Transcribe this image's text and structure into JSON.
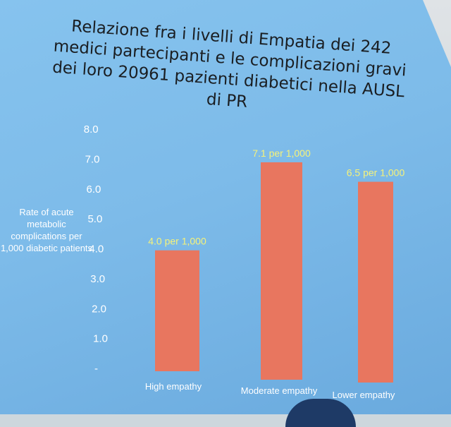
{
  "title": "Relazione fra i livelli di Empatia dei 242 medici partecipanti e le complicazioni gravi dei loro 20961 pazienti diabetici nella  AUSL di PR",
  "colors": {
    "background": "#7dbbe9",
    "bar": "#e8765f",
    "data_label": "#f5f27a",
    "axis_text": "#ffffff"
  },
  "chart_data": {
    "type": "bar",
    "title": "Relazione fra i livelli di Empatia dei 242 medici partecipanti e le complicazioni gravi dei loro 20961 pazienti diabetici nella  AUSL di PR",
    "ylabel": "Rate of acute metabolic complications per 1,000 diabetic patients",
    "xlabel": "",
    "categories": [
      "High empathy",
      "Moderate empathy",
      "Lower empathy"
    ],
    "values": [
      4.0,
      7.1,
      6.5
    ],
    "data_labels": [
      "4.0 per 1,000",
      "7.1 per 1,000",
      "6.5 per 1,000"
    ],
    "ylim": [
      0,
      8
    ],
    "yticks": [
      "-",
      "1.0",
      "2.0",
      "3.0",
      "4.0",
      "5.0",
      "6.0",
      "7.0",
      "8.0"
    ],
    "grid": false,
    "legend": "none"
  }
}
